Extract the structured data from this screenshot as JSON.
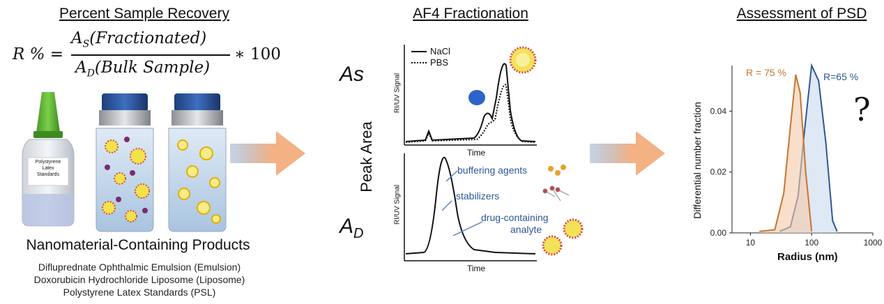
{
  "left": {
    "title": "Percent Sample Recovery",
    "formula": {
      "lhs": "R % =",
      "numerator_sym": "A",
      "numerator_sub": "S",
      "numerator_text": "(Fractionated)",
      "denominator_sym": "A",
      "denominator_sub": "D",
      "denominator_text": "(Bulk Sample)",
      "multiplier": "∗ 100"
    },
    "bottle_label": [
      "Polystyrene",
      "Latex",
      "Standards"
    ],
    "products_heading": "Nanomaterial-Containing Products",
    "products": [
      "Difluprednate Ophthalmic Emulsion (Emulsion)",
      "Doxorubicin Hydrochloride Liposome (Liposome)",
      "Polystyrene Latex Standards (PSL)"
    ]
  },
  "middle": {
    "title": "AF4 Fractionation",
    "as_label": "As",
    "ad_label": "A",
    "ad_sub": "D",
    "peak_area_label": "Peak Area",
    "top_plot": {
      "ylabel": "RI/UV Signal",
      "xlabel": "Time",
      "legend": [
        "NaCl",
        "PBS"
      ]
    },
    "bottom_plot": {
      "ylabel": "RI/UV Signal",
      "xlabel": "Time",
      "annotations": [
        "buffering agents",
        "stabilizers",
        "drug-containing",
        "analyte"
      ]
    }
  },
  "right": {
    "title": "Assessment of PSD",
    "question": "?",
    "chart_data": {
      "type": "area",
      "xlabel": "Radius (nm)",
      "ylabel": "Differential number fraction",
      "x_scale": "log",
      "xlim": [
        5,
        1000
      ],
      "ylim": [
        0,
        0.055
      ],
      "x_ticks": [
        "10",
        "100",
        "1000"
      ],
      "y_ticks": [
        "0.00",
        "0.02",
        "0.04"
      ],
      "series": [
        {
          "name": "R = 75 %",
          "color": "#c8742e",
          "x": [
            14,
            25,
            35,
            45,
            55,
            65,
            80,
            100
          ],
          "y": [
            0.0005,
            0.001,
            0.013,
            0.035,
            0.052,
            0.046,
            0.02,
            0.0005
          ]
        },
        {
          "name": "R=65 %",
          "color": "#2f5597",
          "x": [
            30,
            45,
            60,
            75,
            100,
            130,
            170,
            220,
            260
          ],
          "y": [
            0.0005,
            0.002,
            0.012,
            0.032,
            0.055,
            0.05,
            0.03,
            0.004,
            0.0005
          ]
        }
      ]
    }
  },
  "colors": {
    "arrow": "#f4b183",
    "arrow_fade": "#8fa8c8",
    "text_blue": "#2f5597",
    "orange": "#c8742e",
    "blue": "#4472c4"
  }
}
